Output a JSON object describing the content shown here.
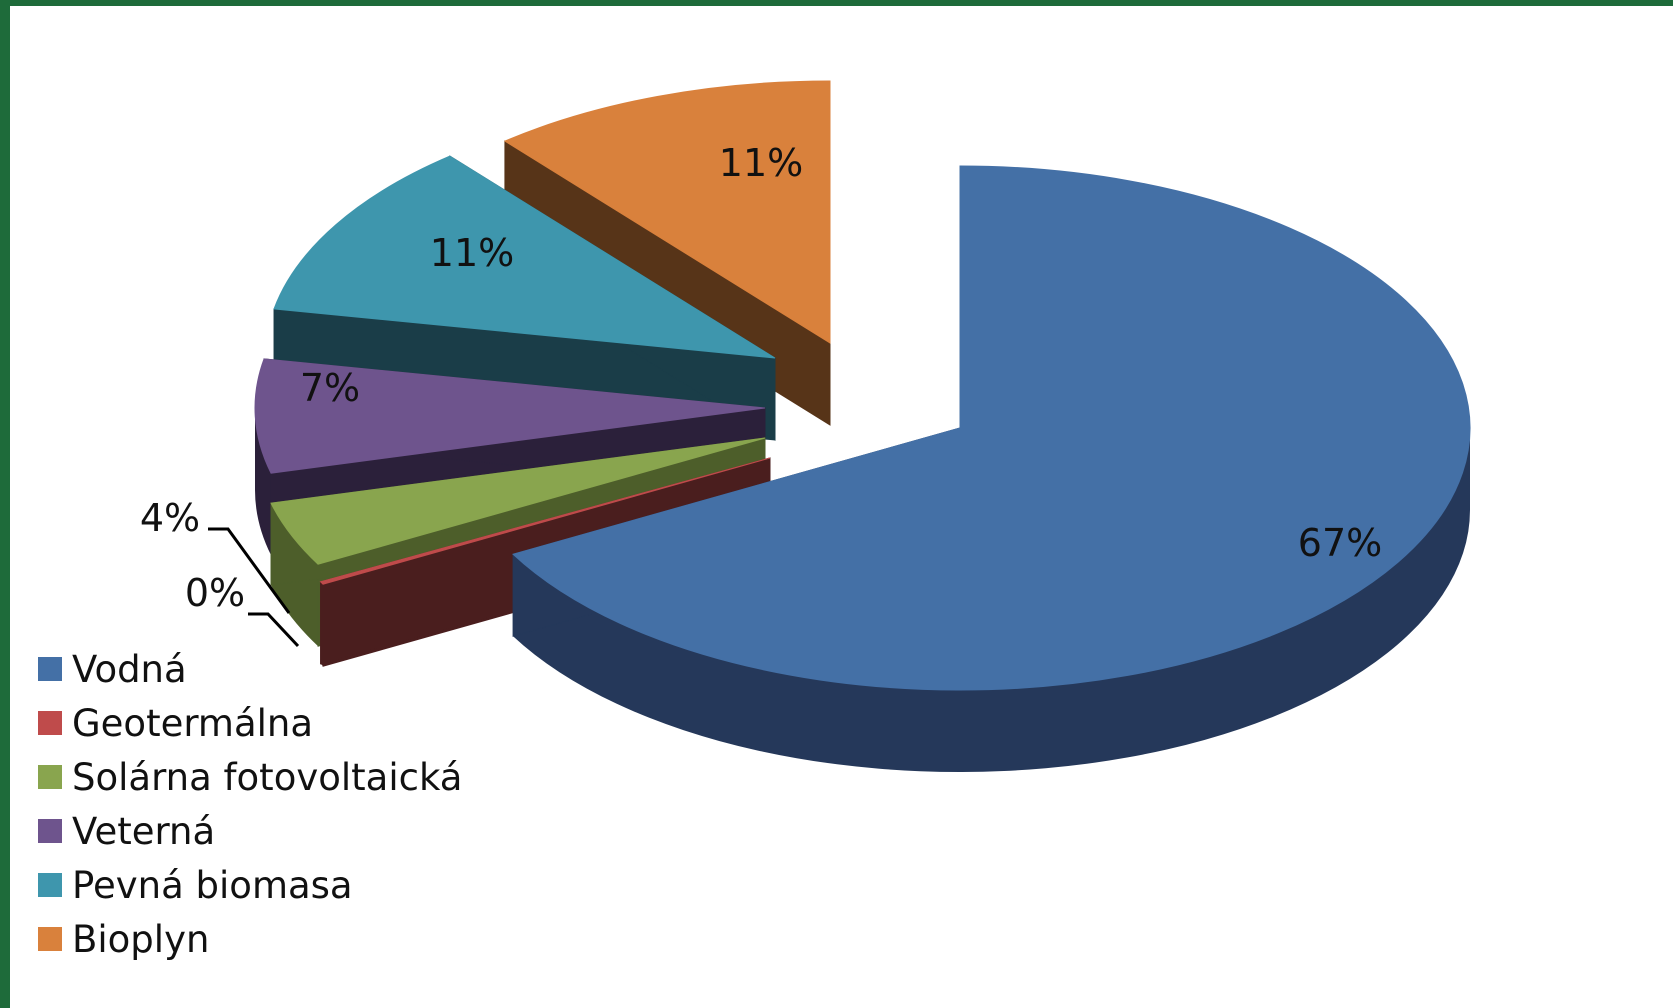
{
  "chart_data": {
    "type": "pie",
    "variant": "3d-exploded",
    "legend_position": "bottom-left",
    "slices": [
      {
        "name": "Vodná",
        "value": 67,
        "label": "67%",
        "color": "#4470a6",
        "side_color": "#25385a"
      },
      {
        "name": "Geotermálna",
        "value": 0,
        "label": "0%",
        "color": "#bf4b4b",
        "side_color": "#4a1e1e"
      },
      {
        "name": "Solárna fotovoltaická",
        "value": 4,
        "label": "4%",
        "color": "#89a54e",
        "side_color": "#4d5e2a"
      },
      {
        "name": "Veterná",
        "value": 7,
        "label": "7%",
        "color": "#6e548d",
        "side_color": "#2b203a"
      },
      {
        "name": "Pevná biomasa",
        "value": 11,
        "label": "11%",
        "color": "#3e96ad",
        "side_color": "#1a3d48"
      },
      {
        "name": "Bioplyn",
        "value": 11,
        "label": "11%",
        "color": "#d9813c",
        "side_color": "#573418"
      }
    ]
  }
}
